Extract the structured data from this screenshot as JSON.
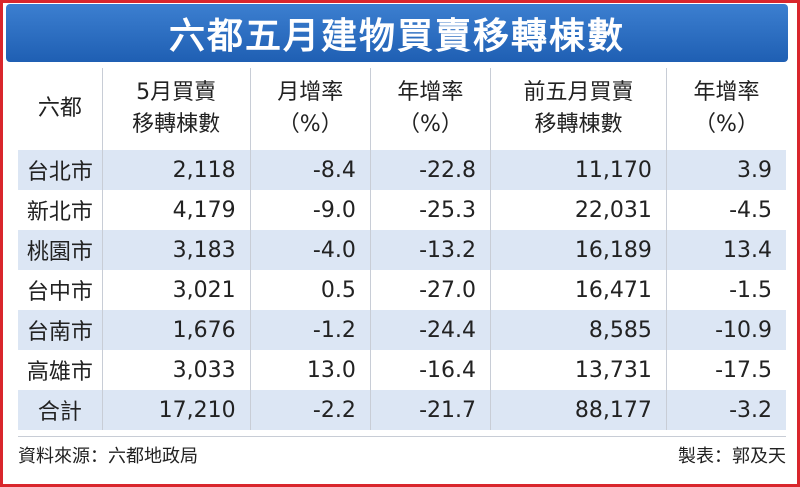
{
  "header": {
    "title": "六都五月建物買賣移轉棟數"
  },
  "table": {
    "columns": [
      [
        "六都"
      ],
      [
        "5月買賣",
        "移轉棟數"
      ],
      [
        "月增率",
        "（%）"
      ],
      [
        "年增率",
        "（%）"
      ],
      [
        "前五月買賣",
        "移轉棟數"
      ],
      [
        "年增率",
        "（%）"
      ]
    ],
    "rows": [
      [
        "台北市",
        "2,118",
        "-8.4",
        "-22.8",
        "11,170",
        "3.9"
      ],
      [
        "新北市",
        "4,179",
        "-9.0",
        "-25.3",
        "22,031",
        "-4.5"
      ],
      [
        "桃園市",
        "3,183",
        "-4.0",
        "-13.2",
        "16,189",
        "13.4"
      ],
      [
        "台中市",
        "3,021",
        "0.5",
        "-27.0",
        "16,471",
        "-1.5"
      ],
      [
        "台南市",
        "1,676",
        "-1.2",
        "-24.4",
        "8,585",
        "-10.9"
      ],
      [
        "高雄市",
        "3,033",
        "13.0",
        "-16.4",
        "13,731",
        "-17.5"
      ],
      [
        "合計",
        "17,210",
        "-2.2",
        "-21.7",
        "88,177",
        "-3.2"
      ]
    ]
  },
  "footer": {
    "source": "資料來源：六都地政局",
    "credit": "製表：郭及天"
  }
}
